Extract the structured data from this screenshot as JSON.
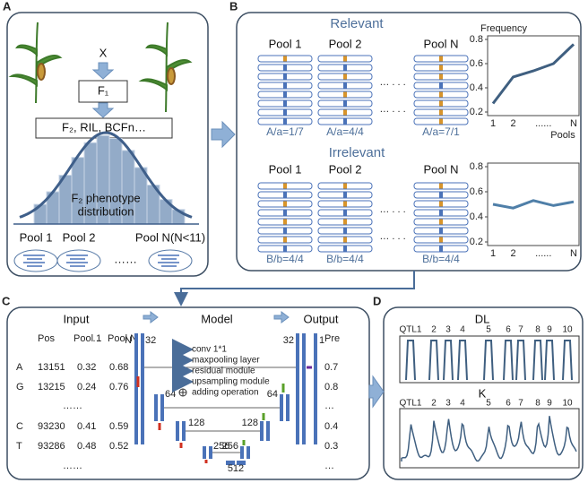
{
  "panels": {
    "a": "A",
    "b": "B",
    "c": "C",
    "d": "D"
  },
  "panel_a": {
    "cross": "X",
    "f1": "F₁",
    "populations": "F₂, RIL, BCFn…",
    "distribution": [
      "F₂ phenotype",
      "distribution"
    ],
    "pools": [
      "Pool 1",
      "Pool 2",
      "……",
      "Pool N(N<11)"
    ]
  },
  "panel_b": {
    "relevant": {
      "title": "Relevant",
      "pools": [
        "Pool 1",
        "Pool 2",
        "Pool N"
      ],
      "ellipsis": "… . . .",
      "ratios": [
        "A/a=1/7",
        "A/a=4/4",
        "A/a=7/1"
      ],
      "chart": {
        "ylabel": "Frequency",
        "xlabel": "Pools",
        "x": [
          1,
          2,
          3,
          4,
          5
        ],
        "values": [
          0.27,
          0.49,
          0.54,
          0.6,
          0.76
        ],
        "color": "#3f5f80",
        "ylim": [
          0.2,
          0.8
        ],
        "yticks": [
          0.2,
          0.4,
          0.6,
          0.8
        ],
        "xlim": [
          1,
          5
        ],
        "xticks": [
          1,
          2,
          {
            "value": 3.5,
            "label": "......"
          },
          {
            "value": 5,
            "label": "N"
          }
        ]
      }
    },
    "irrelevant": {
      "title": "Irrelevant",
      "pools": [
        "Pool 1",
        "Pool 2",
        "Pool N"
      ],
      "ellipsis": "… . . .",
      "ratios": [
        "B/b=4/4",
        "B/b=4/4",
        "B/b=4/4"
      ],
      "chart": {
        "x": [
          1,
          2,
          3,
          4,
          5
        ],
        "values": [
          0.5,
          0.47,
          0.53,
          0.49,
          0.52
        ],
        "color": "#4f7fa8",
        "ylim": [
          0.2,
          0.8
        ],
        "yticks": [
          0.2,
          0.4,
          0.6,
          0.8
        ],
        "xlim": [
          1,
          5
        ],
        "xticks": [
          1,
          2,
          {
            "value": 3.5,
            "label": "......"
          },
          {
            "value": 5,
            "label": "N"
          }
        ]
      }
    }
  },
  "panel_c": {
    "input": "Input",
    "model": "Model",
    "output": "Output",
    "table": {
      "header": [
        "Pos",
        "Pool 1",
        "…",
        "Pool N"
      ],
      "rows": [
        [
          "A",
          "13151",
          "0.32",
          "0.68"
        ],
        [
          "G",
          "13215",
          "0.24",
          "0.76"
        ],
        [
          "",
          "……",
          "",
          ""
        ],
        [
          "C",
          "93230",
          "0.41",
          "0.59"
        ],
        [
          "T",
          "93286",
          "0.48",
          "0.52"
        ],
        [
          "",
          "……",
          "",
          ""
        ]
      ]
    },
    "pre": {
      "header": "Pre",
      "values": [
        "0.7",
        "0.8",
        "…",
        "0.4",
        "0.3",
        "…"
      ]
    },
    "unet": {
      "labels": [
        "N",
        "32",
        "64",
        "128",
        "128",
        "256",
        "256",
        "512",
        "32",
        "1",
        "64"
      ]
    },
    "legend": [
      "conv 1*1",
      "maxpooling layer",
      "residual module",
      "upsampling module",
      "adding operation"
    ]
  },
  "panel_d": {
    "dl": "DL",
    "k": "K",
    "qtl": [
      "QTL1",
      "2",
      "3",
      "4",
      "5",
      "6",
      "7",
      "8",
      "9",
      "10"
    ]
  }
}
